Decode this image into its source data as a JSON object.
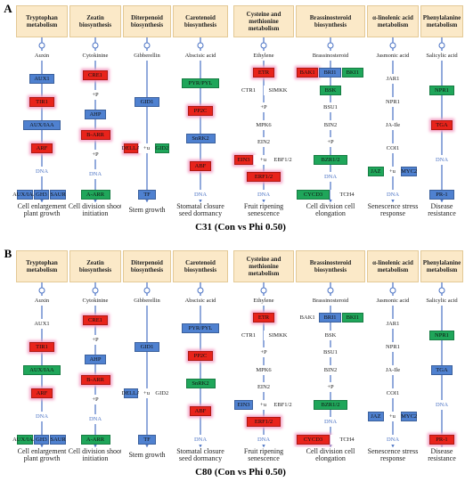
{
  "panels": [
    {
      "label": "A",
      "title": "C31 (Con vs Phi 0.50)",
      "columns": [
        {
          "header": "Tryptophan metabolism",
          "rows": [
            [
              {
                "label": "Auxin"
              }
            ],
            [
              {
                "label": "AUX1",
                "color": "#4f81d0"
              }
            ],
            [
              {
                "label": "TIR1",
                "color": "#e8231b"
              }
            ],
            [
              {
                "label": "AUX/IAA",
                "color": "#4f81d0"
              }
            ],
            [
              {
                "label": "ARF",
                "color": "#e8231b"
              }
            ],
            [
              {
                "label": "DNA"
              }
            ],
            [
              {
                "label": "AUX/IAA",
                "color": "#4f81d0"
              },
              {
                "label": "GH3",
                "color": "#4f81d0"
              },
              {
                "label": "SAUR",
                "color": "#4f81d0"
              }
            ]
          ],
          "outcome": "Cell enlargement plant growth"
        },
        {
          "header": "Zeatin biosynthesis",
          "rows": [
            [
              {
                "label": "Cytokinine"
              }
            ],
            [
              {
                "label": "CRE1",
                "color": "#e8231b"
              }
            ],
            [
              {
                "label": "+P"
              }
            ],
            [
              {
                "label": "AHP",
                "color": "#4f81d0"
              }
            ],
            [
              {
                "label": "B-ARR",
                "color": "#e8231b"
              }
            ],
            [
              {
                "label": "+P"
              }
            ],
            [
              {
                "label": "DNA"
              }
            ],
            [
              {
                "label": "A-ARR",
                "color": "#1fa65a"
              }
            ]
          ],
          "outcome": "Cell division shoot initiation"
        },
        {
          "header": "Diterpenoid biosynthesis",
          "rows": [
            [
              {
                "label": "Gibberellin"
              }
            ],
            [
              {
                "label": "GID1",
                "color": "#4f81d0"
              }
            ],
            [
              {
                "label": "DELLA",
                "color": "#e8231b"
              },
              {
                "label": "+u"
              },
              {
                "label": "GID2",
                "color": "#1fa65a"
              }
            ],
            [
              {
                "label": "TF",
                "color": "#4f81d0"
              }
            ]
          ],
          "outcome": "Stem growth"
        },
        {
          "header": "Carotenoid biosynthesis",
          "rows": [
            [
              {
                "label": "Abscisic acid"
              }
            ],
            [
              {
                "label": "PYR/PYL",
                "color": "#1fa65a"
              }
            ],
            [
              {
                "label": "PP2C",
                "color": "#e8231b"
              }
            ],
            [
              {
                "label": "SnRK2",
                "color": "#4f81d0"
              }
            ],
            [
              {
                "label": "ABF",
                "color": "#e8231b"
              }
            ],
            [
              {
                "label": "DNA"
              }
            ]
          ],
          "outcome": "Stomatal closure seed dormancy"
        },
        {
          "header": "Cysteine and methionine metabolism",
          "rows": [
            [
              {
                "label": "Ethylene"
              }
            ],
            [
              {
                "label": "ETR",
                "color": "#e8231b"
              }
            ],
            [
              {
                "label": "CTR1"
              },
              {
                "label": "SIMKK"
              }
            ],
            [
              {
                "label": "+P"
              }
            ],
            [
              {
                "label": "MPK6"
              }
            ],
            [
              {
                "label": "EIN2"
              }
            ],
            [
              {
                "label": "EIN3",
                "color": "#e8231b"
              },
              {
                "label": "+u"
              },
              {
                "label": "EBF1/2"
              }
            ],
            [
              {
                "label": "ERF1/2",
                "color": "#e8231b"
              }
            ],
            [
              {
                "label": "DNA"
              }
            ]
          ],
          "outcome": "Fruit ripening senescence"
        },
        {
          "header": "Brassinosteroid biosynthesis",
          "rows": [
            [
              {
                "label": "Brassinosteroid"
              }
            ],
            [
              {
                "label": "BAK1",
                "color": "#e8231b"
              },
              {
                "label": "BRI1",
                "color": "#4f81d0"
              },
              {
                "label": "BKI1",
                "color": "#1fa65a"
              }
            ],
            [
              {
                "label": "BSK",
                "color": "#1fa65a"
              }
            ],
            [
              {
                "label": "BSU1"
              }
            ],
            [
              {
                "label": "BIN2"
              }
            ],
            [
              {
                "label": "+P"
              }
            ],
            [
              {
                "label": "BZR1/2",
                "color": "#1fa65a"
              }
            ],
            [
              {
                "label": "DNA"
              }
            ],
            [
              {
                "label": "CYCD3",
                "color": "#1fa65a"
              },
              {
                "label": "TCH4"
              }
            ]
          ],
          "outcome": "Cell division cell elongation"
        },
        {
          "header": "α-linolenic acid metabolism",
          "rows": [
            [
              {
                "label": "Jasmonic acid"
              }
            ],
            [
              {
                "label": "JAR1"
              }
            ],
            [
              {
                "label": "NPR1"
              }
            ],
            [
              {
                "label": "JA-Ile"
              }
            ],
            [
              {
                "label": "COI1"
              }
            ],
            [
              {
                "label": "JAZ",
                "color": "#1fa65a"
              },
              {
                "label": "+u"
              },
              {
                "label": "MYC2",
                "color": "#4f81d0"
              }
            ],
            [
              {
                "label": "DNA"
              }
            ]
          ],
          "outcome": "Senescence stress response"
        },
        {
          "header": "Phenylalanine metabolism",
          "rows": [
            [
              {
                "label": "Salicylic acid"
              }
            ],
            [
              {
                "label": "NPR1",
                "color": "#1fa65a"
              }
            ],
            [
              {
                "label": "TGA",
                "color": "#e8231b"
              }
            ],
            [
              {
                "label": "DNA"
              }
            ],
            [
              {
                "label": "PR-1",
                "color": "#4f81d0"
              }
            ]
          ],
          "outcome": "Disease resistance"
        }
      ]
    },
    {
      "label": "B",
      "title": "C80 (Con vs Phi 0.50)",
      "columns": [
        {
          "header": "Tryptophan metabolism",
          "rows": [
            [
              {
                "label": "Auxin"
              }
            ],
            [
              {
                "label": "AUX1"
              }
            ],
            [
              {
                "label": "TIR1",
                "color": "#e8231b"
              }
            ],
            [
              {
                "label": "AUX/IAA",
                "color": "#1fa65a"
              }
            ],
            [
              {
                "label": "ARF",
                "color": "#e8231b"
              }
            ],
            [
              {
                "label": "DNA"
              }
            ],
            [
              {
                "label": "AUX/IAA",
                "color": "#1fa65a"
              },
              {
                "label": "GH3",
                "color": "#4f81d0"
              },
              {
                "label": "SAUR",
                "color": "#4f81d0"
              }
            ]
          ],
          "outcome": "Cell enlargement plant growth"
        },
        {
          "header": "Zeatin biosynthesis",
          "rows": [
            [
              {
                "label": "Cytokinine"
              }
            ],
            [
              {
                "label": "CRE1",
                "color": "#e8231b"
              }
            ],
            [
              {
                "label": "+P"
              }
            ],
            [
              {
                "label": "AHP",
                "color": "#4f81d0"
              }
            ],
            [
              {
                "label": "B-ARR",
                "color": "#e8231b"
              }
            ],
            [
              {
                "label": "+P"
              }
            ],
            [
              {
                "label": "DNA"
              }
            ],
            [
              {
                "label": "A-ARR",
                "color": "#1fa65a"
              }
            ]
          ],
          "outcome": "Cell division shoot initiation"
        },
        {
          "header": "Diterpenoid biosynthesis",
          "rows": [
            [
              {
                "label": "Gibberellin"
              }
            ],
            [
              {
                "label": "GID1",
                "color": "#4f81d0"
              }
            ],
            [
              {
                "label": "DELLA",
                "color": "#4f81d0"
              },
              {
                "label": "+u"
              },
              {
                "label": "GID2"
              }
            ],
            [
              {
                "label": "TF",
                "color": "#4f81d0"
              }
            ]
          ],
          "outcome": "Stem growth"
        },
        {
          "header": "Carotenoid biosynthesis",
          "rows": [
            [
              {
                "label": "Abscisic acid"
              }
            ],
            [
              {
                "label": "PYR/PYL",
                "color": "#4f81d0"
              }
            ],
            [
              {
                "label": "PP2C",
                "color": "#e8231b"
              }
            ],
            [
              {
                "label": "SnRK2",
                "color": "#1fa65a"
              }
            ],
            [
              {
                "label": "ABF",
                "color": "#e8231b"
              }
            ],
            [
              {
                "label": "DNA"
              }
            ]
          ],
          "outcome": "Stomatal closure seed dormancy"
        },
        {
          "header": "Cysteine and methionine metabolism",
          "rows": [
            [
              {
                "label": "Ethylene"
              }
            ],
            [
              {
                "label": "ETR",
                "color": "#e8231b"
              }
            ],
            [
              {
                "label": "CTR1"
              },
              {
                "label": "SIMKK"
              }
            ],
            [
              {
                "label": "+P"
              }
            ],
            [
              {
                "label": "MPK6"
              }
            ],
            [
              {
                "label": "EIN2"
              }
            ],
            [
              {
                "label": "EIN3",
                "color": "#4f81d0"
              },
              {
                "label": "+u"
              },
              {
                "label": "EBF1/2"
              }
            ],
            [
              {
                "label": "ERF1/2",
                "color": "#e8231b"
              }
            ],
            [
              {
                "label": "DNA"
              }
            ]
          ],
          "outcome": "Fruit ripening senescence"
        },
        {
          "header": "Brassinosteroid biosynthesis",
          "rows": [
            [
              {
                "label": "Brassinosteroid"
              }
            ],
            [
              {
                "label": "BAK1"
              },
              {
                "label": "BRI1",
                "color": "#4f81d0"
              },
              {
                "label": "BKI1",
                "color": "#1fa65a"
              }
            ],
            [
              {
                "label": "BSK"
              }
            ],
            [
              {
                "label": "BSU1"
              }
            ],
            [
              {
                "label": "BIN2"
              }
            ],
            [
              {
                "label": "+P"
              }
            ],
            [
              {
                "label": "BZR1/2",
                "color": "#1fa65a"
              }
            ],
            [
              {
                "label": "DNA"
              }
            ],
            [
              {
                "label": "CYCD3",
                "color": "#e8231b"
              },
              {
                "label": "TCH4"
              }
            ]
          ],
          "outcome": "Cell division cell elongation"
        },
        {
          "header": "α-linolenic acid metabolism",
          "rows": [
            [
              {
                "label": "Jasmonic acid"
              }
            ],
            [
              {
                "label": "JAR1"
              }
            ],
            [
              {
                "label": "NPR1"
              }
            ],
            [
              {
                "label": "JA-Ile"
              }
            ],
            [
              {
                "label": "COI1"
              }
            ],
            [
              {
                "label": "JAZ",
                "color": "#4f81d0"
              },
              {
                "label": "+u"
              },
              {
                "label": "MYC2",
                "color": "#4f81d0"
              }
            ],
            [
              {
                "label": "DNA"
              }
            ]
          ],
          "outcome": "Senescence stress response"
        },
        {
          "header": "Phenylalanine metabolism",
          "rows": [
            [
              {
                "label": "Salicylic acid"
              }
            ],
            [
              {
                "label": "NPR1",
                "color": "#1fa65a"
              }
            ],
            [
              {
                "label": "TGA",
                "color": "#4f81d0"
              }
            ],
            [
              {
                "label": "DNA"
              }
            ],
            [
              {
                "label": "PR-1",
                "color": "#e8231b"
              }
            ]
          ],
          "outcome": "Disease resistance"
        }
      ]
    }
  ]
}
